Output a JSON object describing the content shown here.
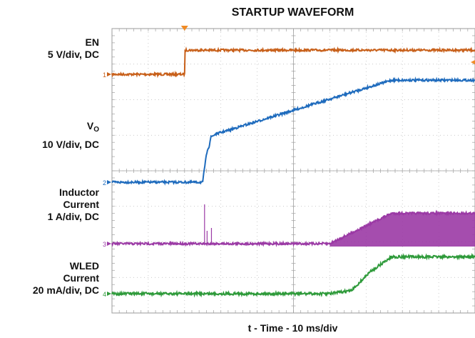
{
  "chart_data": {
    "type": "line",
    "title": "STARTUP WAVEFORM",
    "xlabel": "t - Time - 10 ms/div",
    "grid": true,
    "divisions": {
      "x": 10,
      "y": 8
    },
    "x_unit": "ms",
    "x_range": [
      0,
      100
    ],
    "series": [
      {
        "name": "EN",
        "scale": "5 V/div, DC",
        "channel_marker": "1",
        "color": "#c8601a",
        "points": [
          [
            0,
            0
          ],
          [
            20,
            0
          ],
          [
            20.1,
            1.3
          ],
          [
            100,
            1.3
          ]
        ]
      },
      {
        "name": "VO",
        "scale": "10 V/div, DC",
        "channel_marker": "2",
        "color": "#1e6bbd",
        "points": [
          [
            0,
            0
          ],
          [
            25,
            0
          ],
          [
            25.5,
            0.5
          ],
          [
            26.3,
            1.1
          ],
          [
            26.8,
            1.2
          ],
          [
            27.2,
            1.5
          ],
          [
            28.5,
            1.6
          ],
          [
            77,
            3.4
          ],
          [
            100,
            3.4
          ]
        ]
      },
      {
        "name": "Inductor Current",
        "scale": "1 A/div, DC",
        "channel_marker": "3",
        "color": "#9b3aa5",
        "points": [
          [
            0,
            0
          ],
          [
            60,
            0
          ],
          [
            77,
            0.85
          ],
          [
            100,
            0.85
          ]
        ]
      },
      {
        "name": "WLED Current",
        "scale": "20 mA/div, DC",
        "channel_marker": "4",
        "color": "#2e9a3a",
        "points": [
          [
            0,
            0
          ],
          [
            60,
            0
          ],
          [
            66,
            0.1
          ],
          [
            71,
            0.7
          ],
          [
            77,
            1.2
          ],
          [
            100,
            1.2
          ]
        ]
      }
    ],
    "labels": {
      "en": [
        "EN",
        "5 V/div, DC"
      ],
      "vo_main": "V",
      "vo_sub": "O",
      "vo_scale": "10 V/div, DC",
      "inductor": [
        "Inductor",
        "Current",
        "1 A/div, DC"
      ],
      "wled": [
        "WLED",
        "Current",
        "20 mA/div, DC"
      ]
    }
  }
}
